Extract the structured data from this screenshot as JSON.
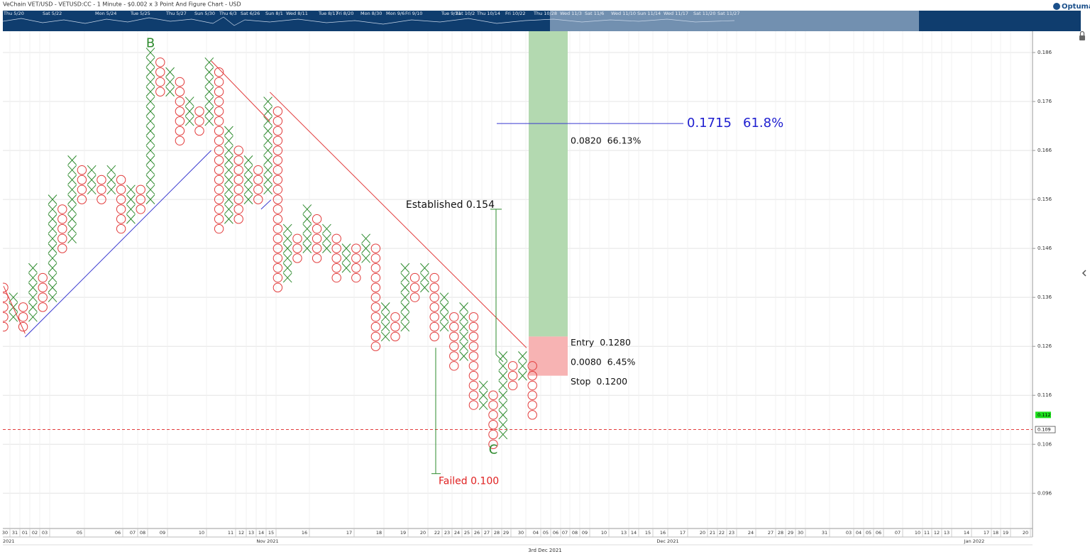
{
  "chart_data": {
    "type": "point_and_figure",
    "title": "VeChain VET/USD - VETUSD:CC - 1 Minute - $0.002 x 3 Point And Figure Chart - USD",
    "brand": "Optuma",
    "box_size": 0.002,
    "x_color": "#2e8b2e",
    "o_color": "#e23b3b",
    "ylim": [
      0.0888,
      0.19035
    ],
    "yticks": [
      0.186,
      0.176,
      0.166,
      0.156,
      0.146,
      0.136,
      0.126,
      0.116,
      0.106,
      0.096
    ],
    "grid": true,
    "columns": [
      {
        "kind": "O",
        "high": 0.138,
        "low": 0.13
      },
      {
        "kind": "X",
        "high": 0.136,
        "low": 0.132
      },
      {
        "kind": "O",
        "high": 0.134,
        "low": 0.13
      },
      {
        "kind": "X",
        "high": 0.142,
        "low": 0.132
      },
      {
        "kind": "O",
        "high": 0.14,
        "low": 0.134
      },
      {
        "kind": "X",
        "high": 0.156,
        "low": 0.136
      },
      {
        "kind": "O",
        "high": 0.154,
        "low": 0.146
      },
      {
        "kind": "X",
        "high": 0.164,
        "low": 0.148
      },
      {
        "kind": "O",
        "high": 0.162,
        "low": 0.156
      },
      {
        "kind": "X",
        "high": 0.162,
        "low": 0.158
      },
      {
        "kind": "O",
        "high": 0.16,
        "low": 0.156
      },
      {
        "kind": "X",
        "high": 0.162,
        "low": 0.158
      },
      {
        "kind": "O",
        "high": 0.16,
        "low": 0.15
      },
      {
        "kind": "X",
        "high": 0.158,
        "low": 0.152
      },
      {
        "kind": "O",
        "high": 0.158,
        "low": 0.154
      },
      {
        "kind": "X",
        "high": 0.186,
        "low": 0.156
      },
      {
        "kind": "O",
        "high": 0.184,
        "low": 0.178
      },
      {
        "kind": "X",
        "high": 0.182,
        "low": 0.178
      },
      {
        "kind": "O",
        "high": 0.18,
        "low": 0.168
      },
      {
        "kind": "X",
        "high": 0.176,
        "low": 0.172
      },
      {
        "kind": "O",
        "high": 0.174,
        "low": 0.17
      },
      {
        "kind": "X",
        "high": 0.184,
        "low": 0.172
      },
      {
        "kind": "O",
        "high": 0.182,
        "low": 0.15
      },
      {
        "kind": "X",
        "high": 0.17,
        "low": 0.152
      },
      {
        "kind": "O",
        "high": 0.166,
        "low": 0.152
      },
      {
        "kind": "X",
        "high": 0.164,
        "low": 0.156
      },
      {
        "kind": "O",
        "high": 0.162,
        "low": 0.156
      },
      {
        "kind": "X",
        "high": 0.176,
        "low": 0.158
      },
      {
        "kind": "O",
        "high": 0.174,
        "low": 0.138
      },
      {
        "kind": "X",
        "high": 0.15,
        "low": 0.14
      },
      {
        "kind": "O",
        "high": 0.148,
        "low": 0.144
      },
      {
        "kind": "X",
        "high": 0.154,
        "low": 0.146
      },
      {
        "kind": "O",
        "high": 0.152,
        "low": 0.144
      },
      {
        "kind": "X",
        "high": 0.15,
        "low": 0.146
      },
      {
        "kind": "O",
        "high": 0.148,
        "low": 0.14
      },
      {
        "kind": "X",
        "high": 0.146,
        "low": 0.142
      },
      {
        "kind": "O",
        "high": 0.146,
        "low": 0.14
      },
      {
        "kind": "X",
        "high": 0.148,
        "low": 0.144
      },
      {
        "kind": "O",
        "high": 0.146,
        "low": 0.126
      },
      {
        "kind": "X",
        "high": 0.134,
        "low": 0.128
      },
      {
        "kind": "O",
        "high": 0.132,
        "low": 0.128
      },
      {
        "kind": "X",
        "high": 0.142,
        "low": 0.13
      },
      {
        "kind": "O",
        "high": 0.14,
        "low": 0.136
      },
      {
        "kind": "X",
        "high": 0.142,
        "low": 0.138
      },
      {
        "kind": "O",
        "high": 0.14,
        "low": 0.128
      },
      {
        "kind": "X",
        "high": 0.136,
        "low": 0.13
      },
      {
        "kind": "O",
        "high": 0.132,
        "low": 0.122
      },
      {
        "kind": "X",
        "high": 0.134,
        "low": 0.124
      },
      {
        "kind": "O",
        "high": 0.132,
        "low": 0.114
      },
      {
        "kind": "X",
        "high": 0.118,
        "low": 0.114
      },
      {
        "kind": "O",
        "high": 0.116,
        "low": 0.106
      },
      {
        "kind": "X",
        "high": 0.124,
        "low": 0.108
      },
      {
        "kind": "O",
        "high": 0.122,
        "low": 0.118
      },
      {
        "kind": "X",
        "high": 0.124,
        "low": 0.12
      },
      {
        "kind": "O",
        "high": 0.122,
        "low": 0.112
      }
    ],
    "trend_lines": [
      {
        "color": "#e23b3b",
        "points": [
          [
            0,
            0.1383
          ],
          [
            2.2,
            0.1286
          ]
        ]
      },
      {
        "color": "#3a3ad0",
        "points": [
          [
            2.2,
            0.1279
          ],
          [
            21.2,
            0.166
          ]
        ]
      },
      {
        "color": "#3a3ad0",
        "points": [
          [
            26.3,
            0.154
          ],
          [
            27.3,
            0.1559
          ]
        ]
      },
      {
        "color": "#e23b3b",
        "points": [
          [
            21.2,
            0.1843
          ],
          [
            27.2,
            0.1719
          ]
        ]
      },
      {
        "color": "#e23b3b",
        "points": [
          [
            27.2,
            0.1779
          ],
          [
            53.4,
            0.1257
          ]
        ]
      }
    ],
    "pivots": [
      {
        "label": "B",
        "column": 15,
        "value": 0.1878
      },
      {
        "label": "C",
        "column": 50,
        "value": 0.1048
      }
    ],
    "established": {
      "label": "Established 0.154",
      "value": 0.154,
      "end": 0.1243
    },
    "failed": {
      "label": "Failed 0.100",
      "value": 0.1,
      "start": 0.1257
    },
    "fib": {
      "value": 0.1715,
      "label": "0.1715",
      "ratio": "61.8%"
    },
    "trade": {
      "entry": 0.128,
      "entry_label": "Entry  0.1280",
      "stop": 0.12,
      "stop_label": "Stop  0.1200",
      "target": 0.21,
      "risk_label": "0.0080  6.45%",
      "reward_label": "0.0820  66.13%"
    },
    "last_price": 0.112,
    "reference_price": 0.109,
    "x_labels": [
      "30",
      "31",
      "01",
      "02",
      "03",
      "05",
      "06",
      "07",
      "08",
      "09",
      "10",
      "11",
      "12",
      "13",
      "14",
      "15",
      "16",
      "17",
      "18",
      "19",
      "20",
      "22",
      "23",
      "24",
      "25",
      "26",
      "27",
      "28",
      "29",
      "30",
      "04",
      "05",
      "06",
      "07",
      "08",
      "09",
      "10",
      "13",
      "14",
      "15",
      "16",
      "17",
      "20",
      "21",
      "22",
      "23",
      "24",
      "27",
      "28",
      "29",
      "30",
      "31",
      "03",
      "04",
      "05",
      "06",
      "07",
      "10",
      "11",
      "12",
      "13",
      "14",
      "17",
      "18",
      "19",
      "20"
    ],
    "month_labels": [
      "2021",
      "Nov 2021",
      "Dec 2021",
      "Jan 2022"
    ],
    "cursor_date": "3rd Dec 2021",
    "navigator_labels": [
      "Thu 5/20",
      "Sat 5/22",
      "Mon 5/24",
      "Tue 5/25",
      "Thu 5/27",
      "Sun 5/30",
      "Thu 6/3",
      "Sat 6/26",
      "Sun 8/1",
      "Wed 8/11",
      "Tue 8/17",
      "Fri 8/20",
      "Mon 8/30",
      "Mon 9/6",
      "Fri 9/10",
      "Tue 9/21",
      "Sat 10/2",
      "Thu 10/14",
      "Fri 10/22",
      "Thu 10/28",
      "Wed 11/3",
      "Sat 11/6",
      "Wed 11/10",
      "Sun 11/14",
      "Wed 11/17",
      "Sat 11/20",
      "Sat 11/27"
    ]
  }
}
